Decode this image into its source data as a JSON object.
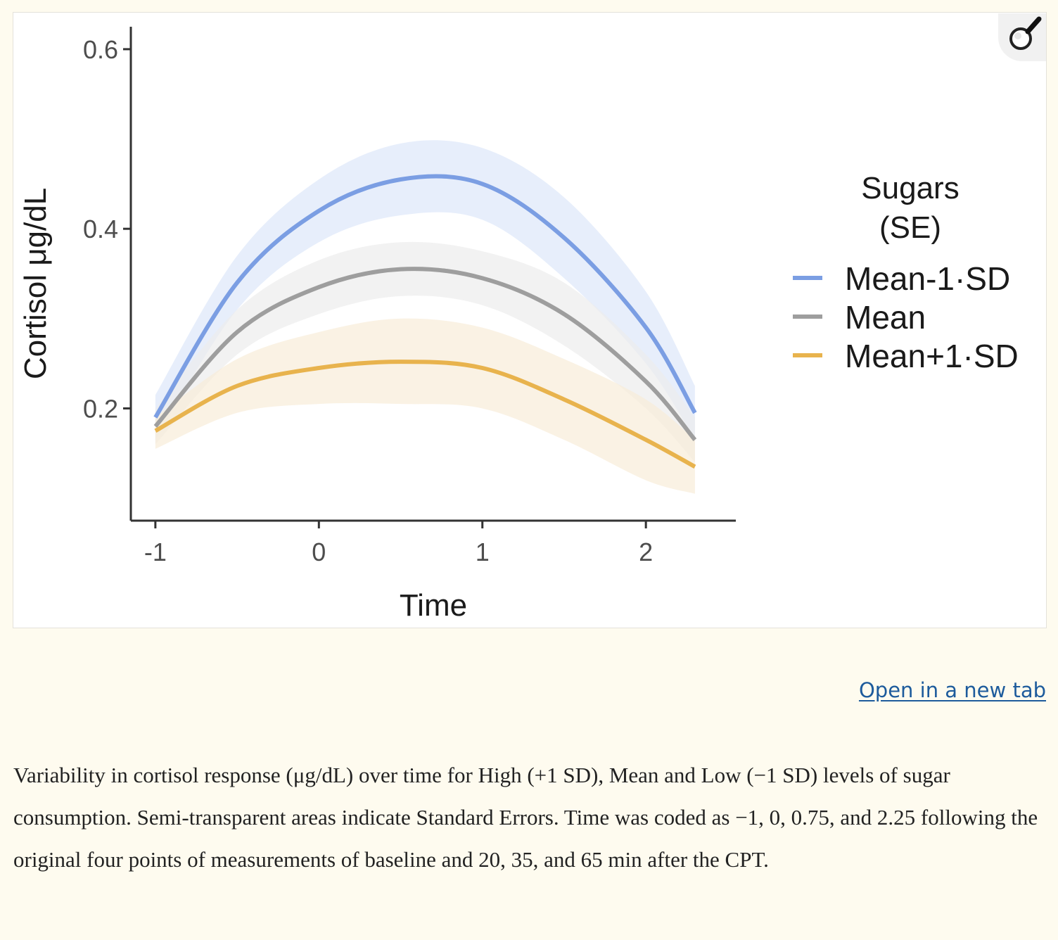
{
  "chart_data": {
    "type": "line",
    "xlabel": "Time",
    "ylabel": "Cortisol μg/dL",
    "xlim": [
      -1.15,
      2.55
    ],
    "ylim": [
      0.075,
      0.625
    ],
    "xticks": [
      "-1",
      "0",
      "1",
      "2"
    ],
    "yticks": [
      "0.2",
      "0.4",
      "0.6"
    ],
    "x": [
      -1.0,
      -0.5,
      0.0,
      0.5,
      1.0,
      1.5,
      2.0,
      2.3
    ],
    "legend": {
      "title": "Sugars\n(SE)",
      "title_line1": "Sugars",
      "title_line2": "(SE)",
      "placement": "right"
    },
    "series": [
      {
        "name": "Mean-1·SD",
        "color": "#7b9ee3",
        "band_color": "#dde7fa",
        "values": [
          0.19,
          0.34,
          0.42,
          0.455,
          0.45,
          0.39,
          0.29,
          0.195
        ],
        "upper": [
          0.215,
          0.37,
          0.455,
          0.495,
          0.49,
          0.435,
          0.33,
          0.225
        ],
        "lower": [
          0.165,
          0.31,
          0.385,
          0.415,
          0.41,
          0.345,
          0.25,
          0.165
        ]
      },
      {
        "name": "Mean",
        "color": "#9e9e9e",
        "band_color": "#ececec",
        "values": [
          0.18,
          0.285,
          0.335,
          0.355,
          0.345,
          0.305,
          0.23,
          0.165
        ],
        "upper": [
          0.2,
          0.31,
          0.365,
          0.385,
          0.375,
          0.34,
          0.26,
          0.19
        ],
        "lower": [
          0.16,
          0.26,
          0.305,
          0.325,
          0.315,
          0.27,
          0.2,
          0.14
        ]
      },
      {
        "name": "Mean+1·SD",
        "color": "#e8b34d",
        "band_color": "#f8ecd9",
        "values": [
          0.175,
          0.225,
          0.245,
          0.252,
          0.245,
          0.21,
          0.165,
          0.135
        ],
        "upper": [
          0.19,
          0.255,
          0.285,
          0.3,
          0.29,
          0.255,
          0.21,
          0.165
        ],
        "lower": [
          0.155,
          0.195,
          0.205,
          0.205,
          0.2,
          0.165,
          0.12,
          0.105
        ]
      }
    ],
    "grid": false
  },
  "ui": {
    "open_link": "Open in a new tab",
    "zoom_icon": "magnifier-icon"
  },
  "caption": "Variability in cortisol response (μg/dL) over time for High (+1 SD), Mean and Low (−1 SD) levels of sugar consumption. Semi-transparent areas indicate Standard Errors. Time was coded as −1, 0, 0.75, and 2.25 following the original four points of measurements of baseline and 20, 35, and 65 min after the CPT."
}
